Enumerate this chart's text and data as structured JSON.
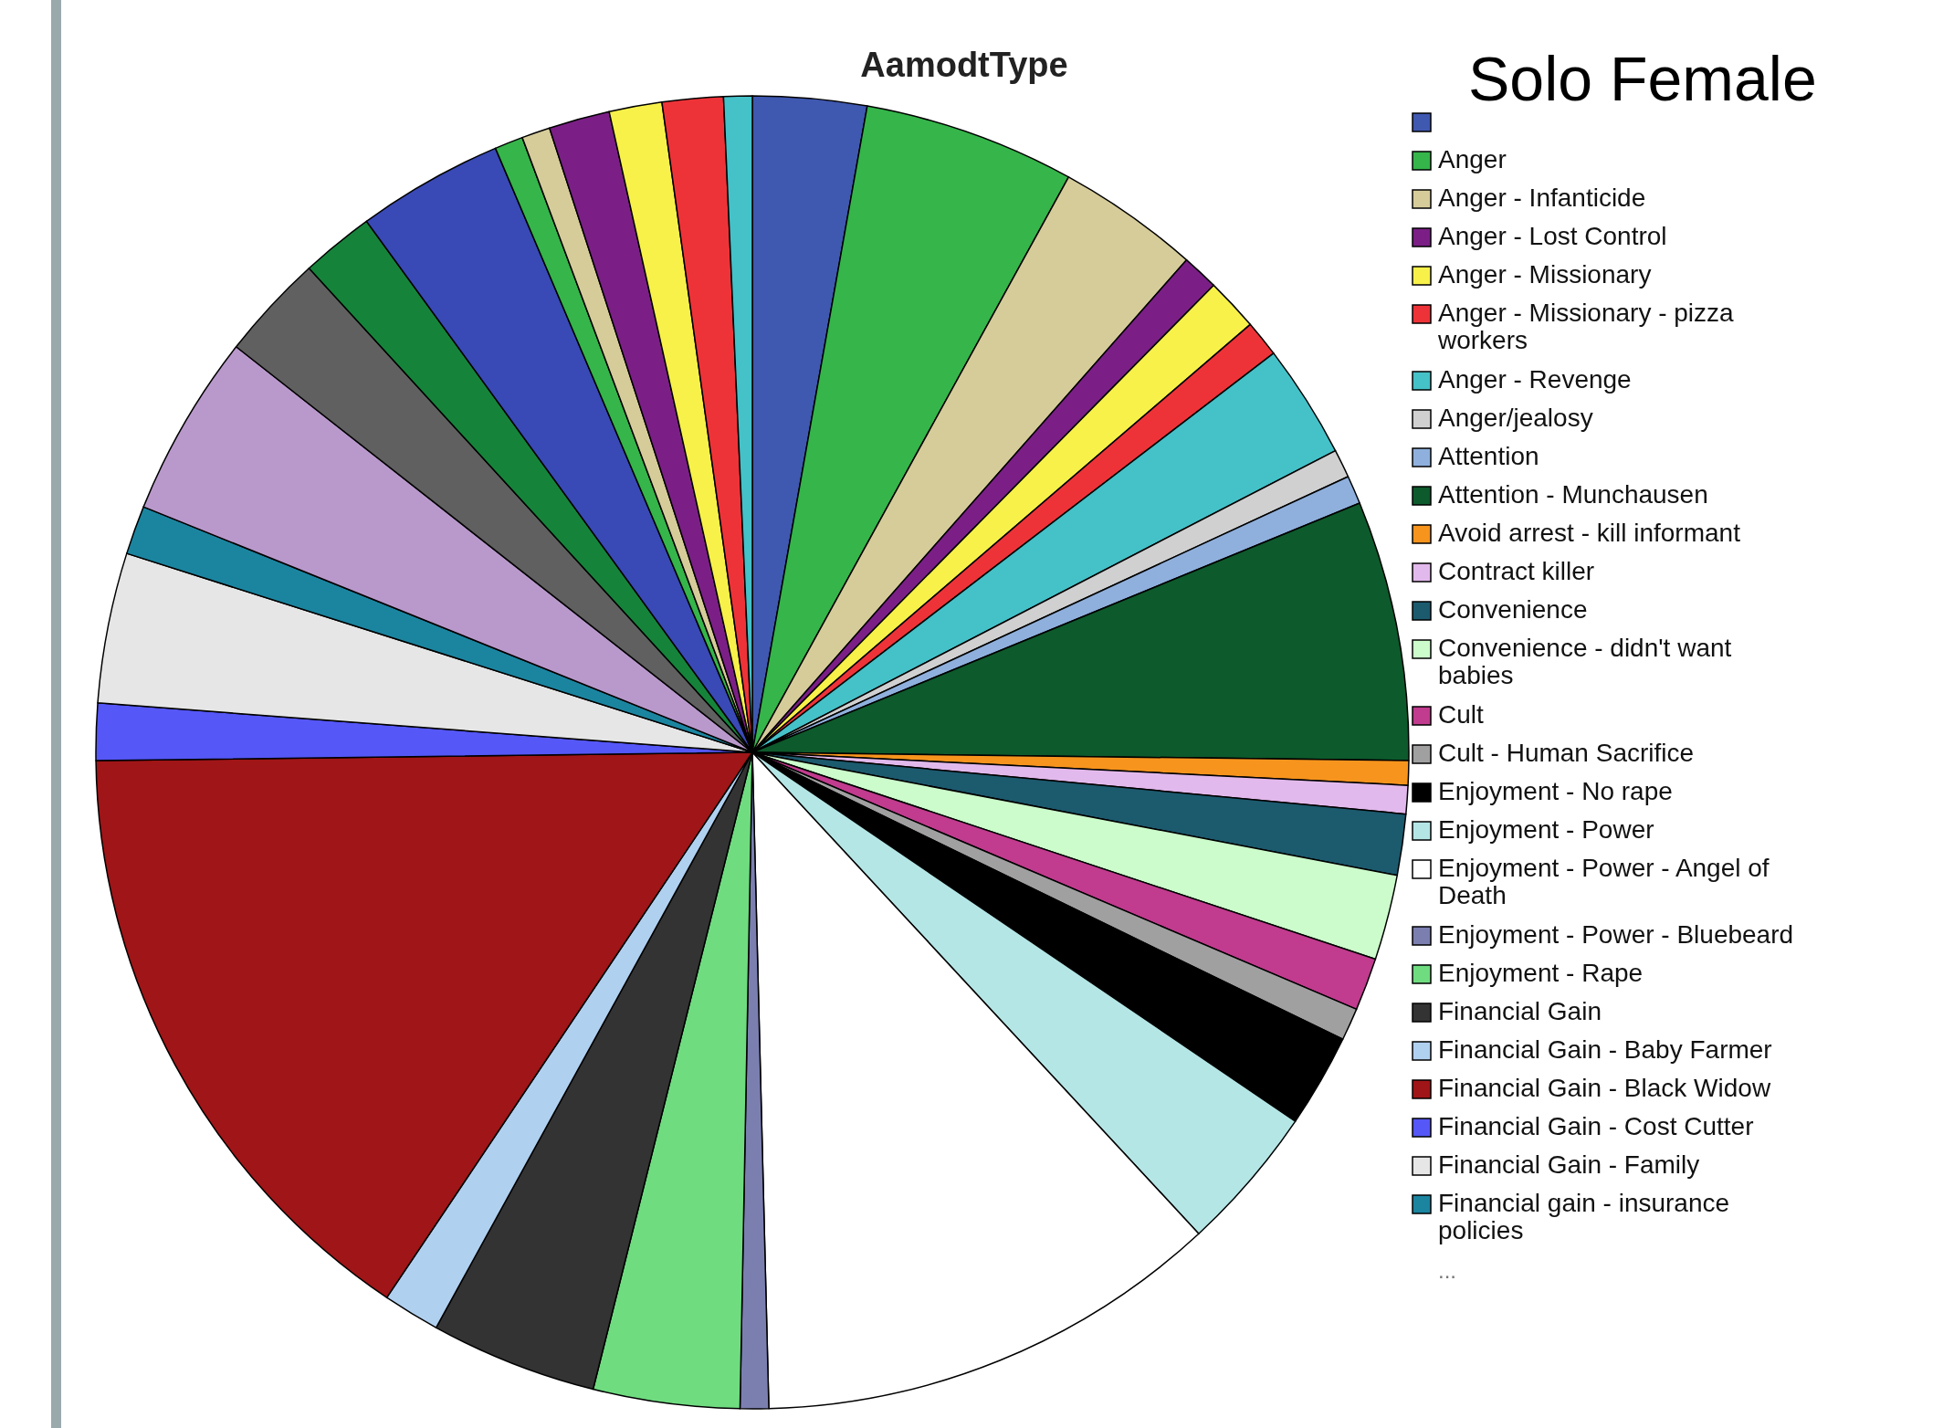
{
  "chart_data": {
    "type": "pie",
    "title": "AamodtType",
    "subtitle": "Solo Female",
    "legend": "right",
    "annotations": [
      "..."
    ],
    "categories": [
      null,
      "Anger",
      "Anger - Infanticide",
      "Anger - Lost Control",
      "Anger - Missionary",
      "Anger - Missionary - pizza workers",
      "Anger - Revenge",
      "Anger/jealosy",
      "Attention",
      "Attention - Munchausen",
      "Avoid arrest - kill informant",
      "Contract killer",
      "Convenience",
      "Convenience - didn't want babies",
      "Cult",
      "Cult - Human Sacrifice",
      "Enjoyment - No rape",
      "Enjoyment - Power",
      "Enjoyment - Power - Angel of Death",
      "Enjoyment - Power - Bluebeard",
      "Enjoyment - Rape",
      "Financial Gain",
      "Financial Gain - Baby Farmer",
      "Financial Gain - Black Widow",
      "Financial Gain - Cost Cutter",
      "Financial Gain - Family",
      "Financial gain - insurance policies",
      null,
      null,
      null,
      null,
      null,
      null,
      null,
      null,
      null,
      null
    ],
    "values": [
      2.8,
      5.2,
      3.5,
      0.9,
      1.3,
      0.9,
      2.8,
      0.7,
      0.7,
      6.4,
      0.6,
      0.7,
      1.5,
      2.1,
      1.3,
      0.8,
      2.3,
      3.6,
      11.5,
      0.7,
      3.6,
      4.1,
      1.4,
      15.4,
      1.4,
      3.7,
      1.2,
      4.5,
      2.6,
      1.8,
      3.6,
      0.7,
      0.7,
      1.5,
      1.3,
      1.5,
      0.7
    ],
    "colors": [
      "#3f58b0",
      "#35b54a",
      "#d6cc9a",
      "#7b1f86",
      "#f7f14a",
      "#ee3338",
      "#45c1c8",
      "#d0d0d0",
      "#8fb0dd",
      "#0d5a2c",
      "#f7941d",
      "#e2b9ec",
      "#1c5a6e",
      "#ccfccb",
      "#c13b8e",
      "#a0a0a0",
      "#000000",
      "#b5e6e6",
      "#ffffff",
      "#7b7fb0",
      "#6fdc80",
      "#333333",
      "#b0d0f0",
      "#a01517",
      "#5557f7",
      "#e6e6e6",
      "#1b85a0",
      "#b999cc",
      "#606060",
      "#15843a",
      "#3949b5",
      "#35b54a",
      "#d6cc9a",
      "#7b1f86",
      "#f7f14a",
      "#ee3338",
      "#45c1c8"
    ]
  }
}
